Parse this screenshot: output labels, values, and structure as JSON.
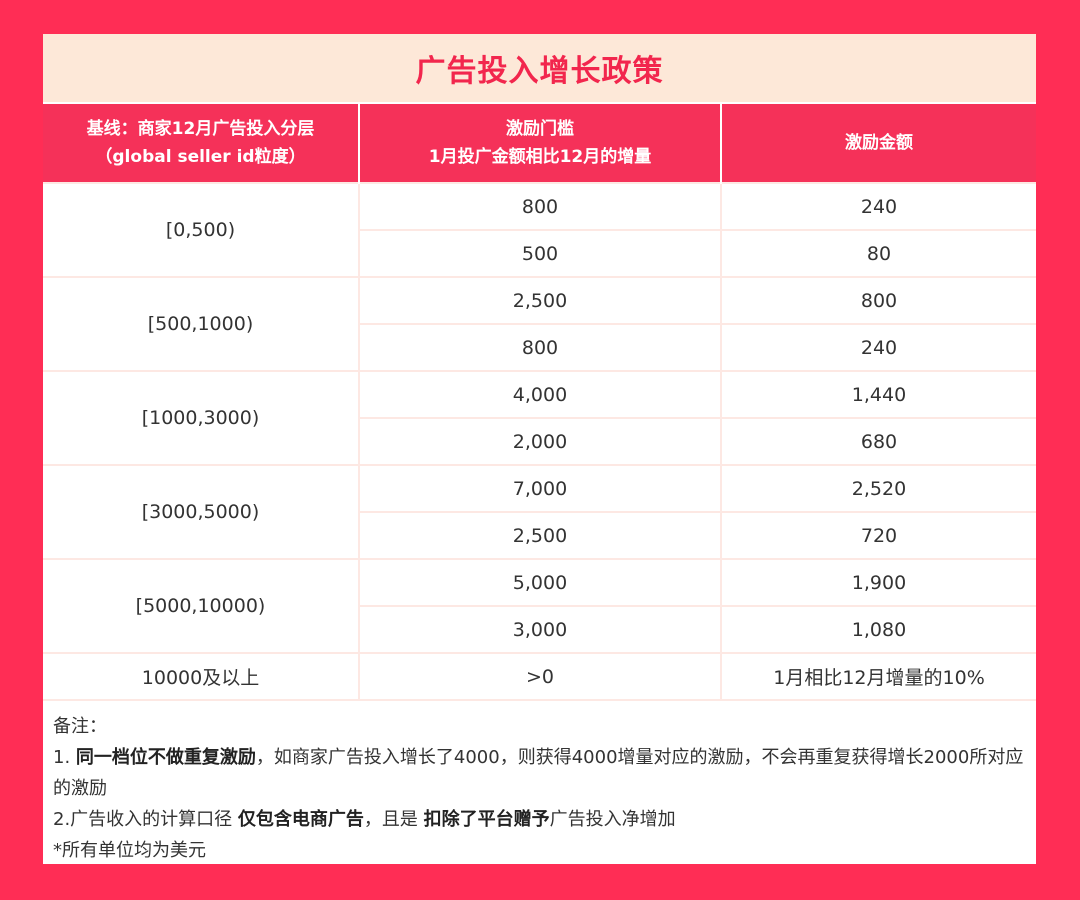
{
  "title": "广告投入增长政策",
  "colors": {
    "background": "#ff2d55",
    "header": "#f53159",
    "title_band": "#fde8d8",
    "title_text": "#f2264d"
  },
  "table": {
    "headers": [
      [
        "基线：商家12月广告投入分层",
        "（global seller id粒度）"
      ],
      [
        "激励门槛",
        "1月投广金额相比12月的增量"
      ],
      [
        "激励金额"
      ]
    ],
    "tiers": [
      {
        "label": "[0,500)",
        "rows": [
          [
            "800",
            "240"
          ],
          [
            "500",
            "80"
          ]
        ]
      },
      {
        "label": "[500,1000)",
        "rows": [
          [
            "2,500",
            "800"
          ],
          [
            "800",
            "240"
          ]
        ]
      },
      {
        "label": "[1000,3000)",
        "rows": [
          [
            "4,000",
            "1,440"
          ],
          [
            "2,000",
            "680"
          ]
        ]
      },
      {
        "label": "[3000,5000)",
        "rows": [
          [
            "7,000",
            "2,520"
          ],
          [
            "2,500",
            "720"
          ]
        ]
      },
      {
        "label": "[5000,10000)",
        "rows": [
          [
            "5,000",
            "1,900"
          ],
          [
            "3,000",
            "1,080"
          ]
        ]
      },
      {
        "label": "10000及以上",
        "rows": [
          [
            ">0",
            "1月相比12月增量的10%"
          ]
        ]
      }
    ]
  },
  "notes": {
    "heading": "备注：",
    "note1_prefix": "1. ",
    "note1_bold": "同一档位不做重复激励",
    "note1_rest": "，如商家广告投入增长了4000，则获得4000增量对应的激励，不会再重复获得增长2000所对应的激励",
    "note2_prefix": "2.广告收入的计算口径 ",
    "note2_bold1": "仅包含电商广告",
    "note2_mid": "，且是 ",
    "note2_bold2": "扣除了平台赠予",
    "note2_rest": "广告投入净增加",
    "note3": "*所有单位均为美元"
  }
}
